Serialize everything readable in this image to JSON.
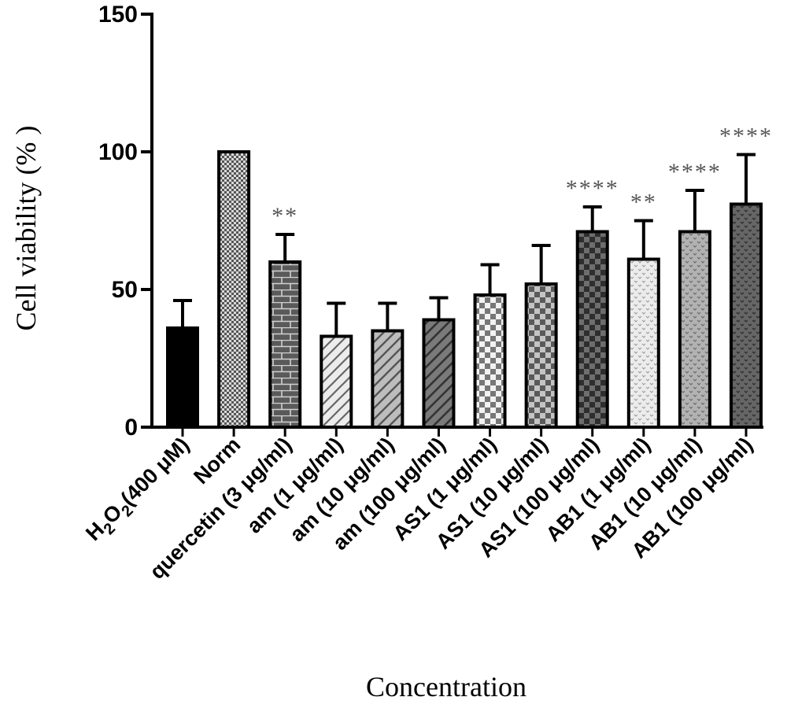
{
  "chart_data": {
    "type": "bar",
    "title": "",
    "xlabel": "Concentration",
    "ylabel": "Cell viability (% )",
    "ylim": [
      0,
      150
    ],
    "yticks": [
      0,
      50,
      100,
      150
    ],
    "grid": false,
    "categories": [
      {
        "main": "H",
        "sub1": "2",
        "mid": "O",
        "sub2": "2",
        "rest": "(400 μM)"
      },
      {
        "main": "Norm"
      },
      {
        "main": "quercetin (3 μg/ml)"
      },
      {
        "main": "am (1 μg/ml)"
      },
      {
        "main": "am (10 μg/ml)"
      },
      {
        "main": "am (100 μg/ml)"
      },
      {
        "main": "AS1 (1 μg/ml)"
      },
      {
        "main": "AS1 (10 μg/ml)"
      },
      {
        "main": "AS1 (100 μg/ml)"
      },
      {
        "main": "AB1 (1 μg/ml)"
      },
      {
        "main": "AB1 (10 μg/ml)"
      },
      {
        "main": "AB1 (100 μg/ml)"
      }
    ],
    "values": [
      36,
      100,
      60,
      33,
      35,
      39,
      48,
      52,
      71,
      61,
      71,
      81
    ],
    "errors": [
      10,
      0,
      10,
      12,
      10,
      8,
      11,
      14,
      9,
      14,
      15,
      18
    ],
    "significance": [
      "",
      "",
      "**",
      "",
      "",
      "",
      "",
      "",
      "****",
      "**",
      "****",
      "****"
    ],
    "bar_styles": [
      {
        "pattern": "solid",
        "fill": "#000000"
      },
      {
        "pattern": "fine-check",
        "fill": "#9a9a9a"
      },
      {
        "pattern": "brick",
        "fill": "#555555"
      },
      {
        "pattern": "diag",
        "fill": "#d8d8d8"
      },
      {
        "pattern": "diag",
        "fill": "#a8a8a8"
      },
      {
        "pattern": "diag",
        "fill": "#606060"
      },
      {
        "pattern": "check-light",
        "fill": "#eeeeee"
      },
      {
        "pattern": "check-mid",
        "fill": "#aaaaaa"
      },
      {
        "pattern": "check-dark",
        "fill": "#404040"
      },
      {
        "pattern": "speckle-light",
        "fill": "#e8e8e8"
      },
      {
        "pattern": "speckle-mid",
        "fill": "#aaaaaa"
      },
      {
        "pattern": "speckle-dark",
        "fill": "#555555"
      }
    ]
  }
}
